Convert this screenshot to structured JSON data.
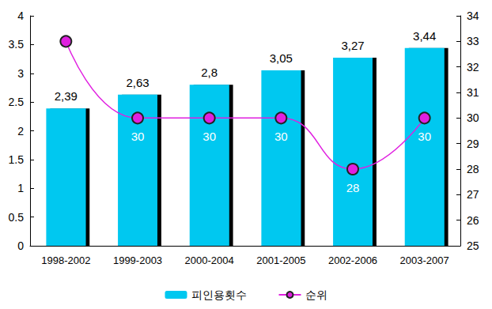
{
  "chart_data": {
    "type": "bar",
    "categories": [
      "1998-2002",
      "1999-2003",
      "2000-2004",
      "2001-2005",
      "2002-2006",
      "2003-2007"
    ],
    "ylim": [
      0,
      4
    ],
    "yticks": [
      0,
      0.5,
      1,
      1.5,
      2,
      2.5,
      3,
      3.5,
      4
    ],
    "y2lim": [
      25,
      34
    ],
    "y2ticks": [
      25,
      26,
      27,
      28,
      29,
      30,
      31,
      32,
      33,
      34
    ],
    "grid": false,
    "legend": "bottom",
    "series": [
      {
        "name": "피인용횟수",
        "type": "bar",
        "color": "#00c8f0",
        "values": [
          2.39,
          2.63,
          2.8,
          3.05,
          3.27,
          3.44
        ],
        "value_labels": [
          "2,39",
          "2,63",
          "2,8",
          "3,05",
          "3,27",
          "3,44"
        ],
        "data_labels": true
      },
      {
        "name": "순위",
        "type": "line",
        "axis": "y2",
        "color": "#e020e0",
        "marker": "circle",
        "line_style": "solid",
        "values": [
          33,
          30,
          30,
          30,
          28,
          30
        ],
        "value_labels": [
          null,
          "30",
          "30",
          "30",
          "28",
          "30"
        ],
        "data_labels": true
      }
    ]
  }
}
